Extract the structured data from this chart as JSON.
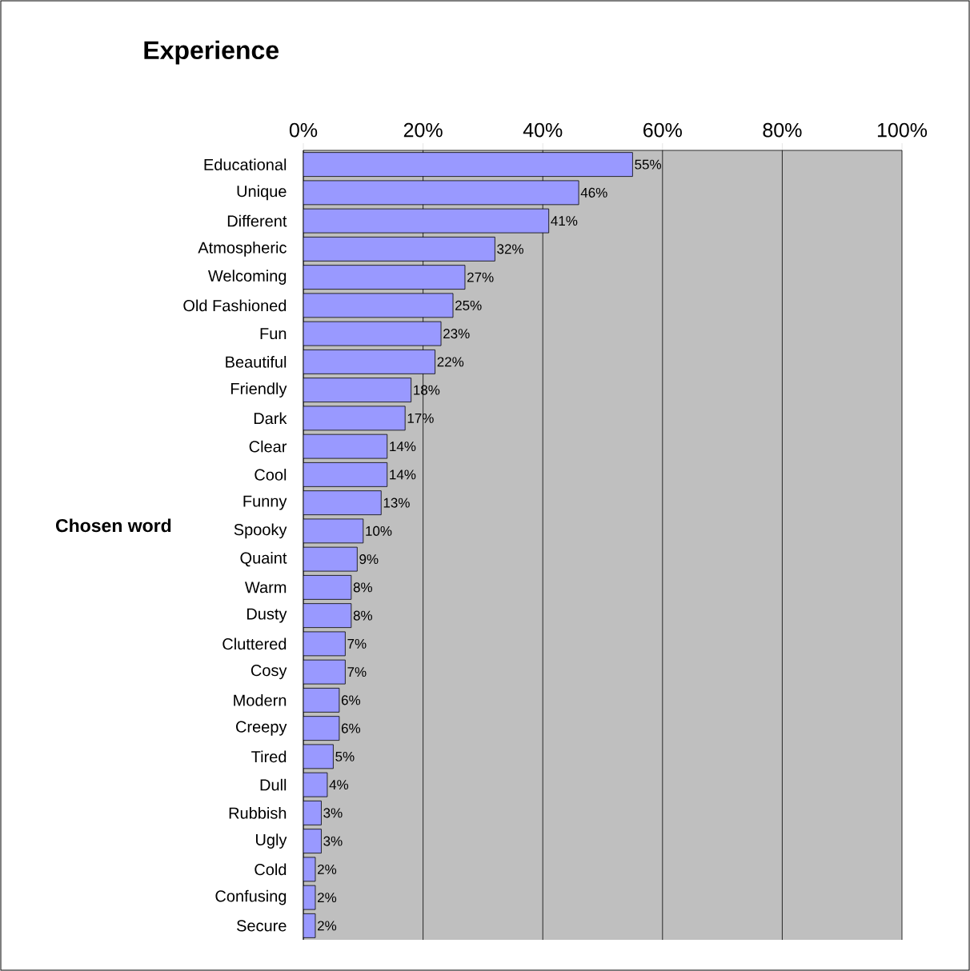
{
  "chart_data": {
    "type": "bar",
    "orientation": "horizontal",
    "title": "Experience",
    "ylabel": "Chosen word",
    "categories": [
      "Educational",
      "Unique",
      "Different",
      "Atmospheric",
      "Welcoming",
      "Old Fashioned",
      "Fun",
      "Beautiful",
      "Friendly",
      "Dark",
      "Clear",
      "Cool",
      "Funny",
      "Spooky",
      "Quaint",
      "Warm",
      "Dusty",
      "Cluttered",
      "Cosy",
      "Modern",
      "Creepy",
      "Tired",
      "Dull",
      "Rubbish",
      "Ugly",
      "Cold",
      "Confusing",
      "Secure"
    ],
    "values": [
      55,
      46,
      41,
      32,
      27,
      25,
      23,
      22,
      18,
      17,
      14,
      14,
      13,
      10,
      9,
      8,
      8,
      7,
      7,
      6,
      6,
      5,
      4,
      3,
      3,
      2,
      2,
      2
    ],
    "value_labels": [
      "55%",
      "46%",
      "41%",
      "32%",
      "27%",
      "25%",
      "23%",
      "22%",
      "18%",
      "17%",
      "14%",
      "14%",
      "13%",
      "10%",
      "9%",
      "8%",
      "8%",
      "7%",
      "7%",
      "6%",
      "6%",
      "5%",
      "4%",
      "3%",
      "3%",
      "2%",
      "2%",
      "2%"
    ],
    "color": "#9999ff",
    "xlim": [
      0,
      100
    ],
    "xticks": [
      {
        "value": 0,
        "label": "0%"
      },
      {
        "value": 20,
        "label": "20%"
      },
      {
        "value": 40,
        "label": "40%"
      },
      {
        "value": 60,
        "label": "60%"
      },
      {
        "value": 80,
        "label": "80%"
      },
      {
        "value": 100,
        "label": "100%"
      }
    ],
    "grid": "x"
  }
}
